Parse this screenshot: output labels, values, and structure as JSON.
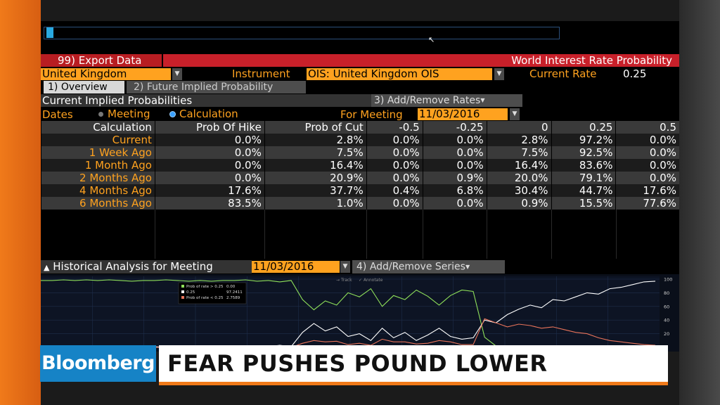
{
  "header": {
    "export_label": "99) Export Data",
    "title": "World Interest Rate Probability"
  },
  "settings": {
    "country": "United Kingdom",
    "instrument_label": "Instrument",
    "instrument_value": "OIS: United Kingdom OIS",
    "current_rate_label": "Current Rate",
    "current_rate_value": "0.25"
  },
  "tabs": [
    {
      "label": "1) Overview",
      "active": true
    },
    {
      "label": "2) Future Implied Probability",
      "active": false
    }
  ],
  "probabilities": {
    "section_title": "Current Implied Probabilities",
    "add_remove_label": "3) Add/Remove Rates",
    "dates_label": "Dates",
    "radio_meeting": "Meeting",
    "radio_calculation": "Calculation",
    "selected_radio": "Calculation",
    "for_meeting_label": "For Meeting",
    "for_meeting_value": "11/03/2016",
    "columns": [
      "Calculation",
      "Prob Of Hike",
      "Prob of Cut",
      "-0.5",
      "-0.25",
      "0",
      "0.25",
      "0.5"
    ],
    "rows": [
      [
        "Current",
        "0.0%",
        "2.8%",
        "0.0%",
        "0.0%",
        "2.8%",
        "97.2%",
        "0.0%"
      ],
      [
        "1 Week Ago",
        "0.0%",
        "7.5%",
        "0.0%",
        "0.0%",
        "7.5%",
        "92.5%",
        "0.0%"
      ],
      [
        "1 Month Ago",
        "0.0%",
        "16.4%",
        "0.0%",
        "0.0%",
        "16.4%",
        "83.6%",
        "0.0%"
      ],
      [
        "2 Months Ago",
        "0.0%",
        "20.9%",
        "0.0%",
        "0.9%",
        "20.0%",
        "79.1%",
        "0.0%"
      ],
      [
        "4 Months Ago",
        "17.6%",
        "37.7%",
        "0.4%",
        "6.8%",
        "30.4%",
        "44.7%",
        "17.6%"
      ],
      [
        "6 Months Ago",
        "83.5%",
        "1.0%",
        "0.0%",
        "0.0%",
        "0.9%",
        "15.5%",
        "77.6%"
      ]
    ]
  },
  "historical": {
    "title": "Historical Analysis for Meeting",
    "meeting_value": "11/03/2016",
    "add_remove_label": "4) Add/Remove Series",
    "track_label": "Track",
    "annotate_label": "Annotate",
    "legend": [
      {
        "label": "Prob of rate > 0.25",
        "value": "0.00",
        "color": "#8fe05a"
      },
      {
        "label": "0.25",
        "value": "97.2411",
        "color": "#ffffff"
      },
      {
        "label": "Prob of rate < 0.25",
        "value": "2.7589",
        "color": "#e8735a"
      }
    ]
  },
  "chart_data": {
    "type": "line",
    "ylim": [
      0,
      100
    ],
    "yticks": [
      "100",
      "80",
      "60",
      "40",
      "20",
      "0"
    ],
    "grid": true,
    "series": [
      {
        "name": "Prob of rate > 0.25",
        "color": "#8fe05a",
        "values": [
          98,
          98,
          99,
          98,
          99,
          98,
          99,
          98,
          97,
          98,
          98,
          99,
          98,
          97,
          98,
          97,
          98,
          98,
          99,
          97,
          98,
          96,
          98,
          70,
          55,
          68,
          62,
          80,
          74,
          86,
          60,
          76,
          70,
          84,
          75,
          62,
          76,
          84,
          82,
          15,
          2,
          1,
          0,
          0,
          0,
          0,
          0,
          0,
          0,
          0,
          0,
          0,
          0,
          0,
          0
        ]
      },
      {
        "name": "0.25",
        "color": "#ffffff",
        "values": [
          1,
          1,
          0,
          1,
          0,
          1,
          0,
          1,
          2,
          1,
          1,
          0,
          1,
          2,
          1,
          2,
          1,
          1,
          0,
          2,
          1,
          3,
          1,
          22,
          35,
          24,
          30,
          16,
          20,
          10,
          28,
          14,
          22,
          10,
          18,
          28,
          16,
          12,
          14,
          40,
          36,
          48,
          56,
          62,
          58,
          70,
          68,
          74,
          80,
          78,
          86,
          88,
          92,
          96,
          97
        ]
      },
      {
        "name": "Prob of rate < 0.25",
        "color": "#e8735a",
        "values": [
          0,
          0,
          0,
          0,
          0,
          0,
          0,
          0,
          0,
          0,
          0,
          0,
          0,
          0,
          0,
          0,
          0,
          0,
          0,
          0,
          0,
          0,
          0,
          6,
          10,
          8,
          9,
          4,
          6,
          3,
          12,
          8,
          8,
          5,
          6,
          10,
          8,
          4,
          4,
          42,
          36,
          30,
          34,
          32,
          28,
          30,
          26,
          22,
          20,
          14,
          10,
          8,
          6,
          4,
          3
        ]
      }
    ]
  },
  "banner": {
    "brand": "Bloomberg",
    "headline": "FEAR PUSHES POUND LOWER"
  }
}
